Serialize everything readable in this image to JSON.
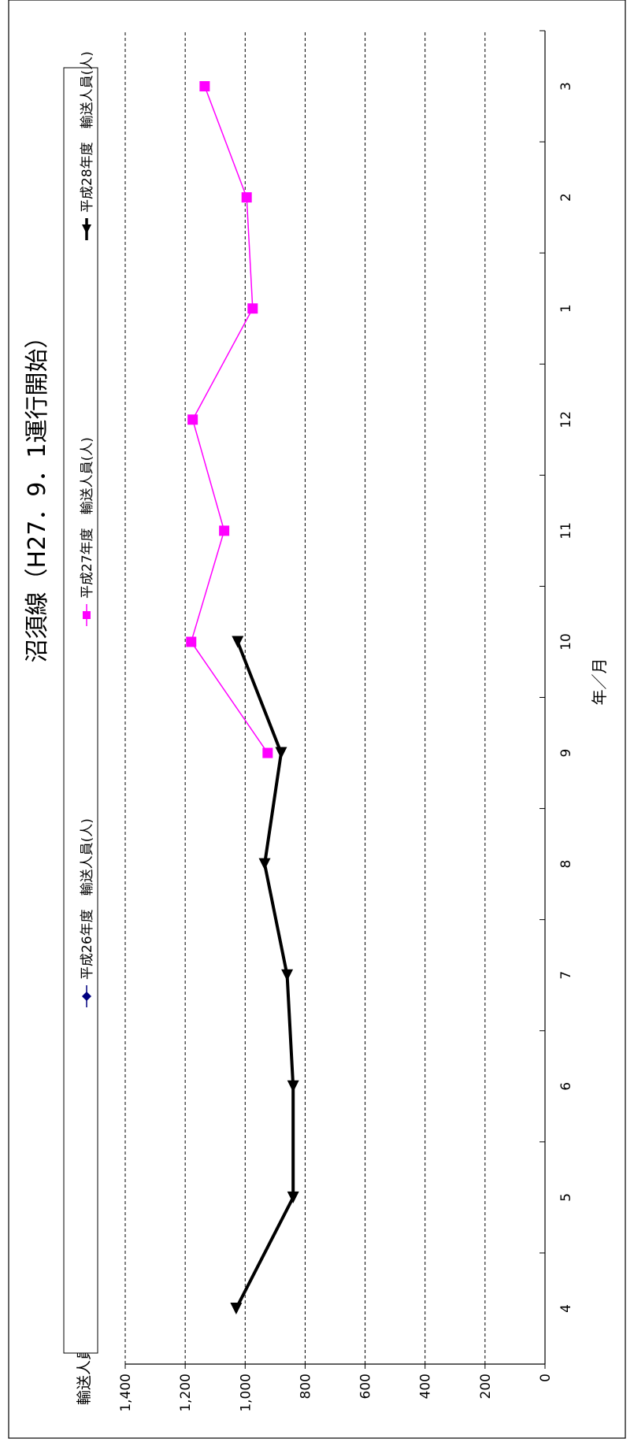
{
  "chart_data": {
    "type": "line",
    "title": "沼須線（H27．9．1運行開始）",
    "xlabel": "年／月",
    "ylabel": "輸送人員",
    "categories": [
      "4",
      "5",
      "6",
      "7",
      "8",
      "9",
      "10",
      "11",
      "12",
      "1",
      "2",
      "3"
    ],
    "ylim": [
      0,
      1400
    ],
    "yticks": [
      "0",
      "200",
      "400",
      "600",
      "800",
      "1,000",
      "1,200",
      "1,400"
    ],
    "grid": true,
    "legend_position": "top",
    "series": [
      {
        "name": "平成26年度　輸送人員(人)",
        "color": "#000080",
        "marker": "diamond",
        "values": [
          null,
          null,
          null,
          null,
          null,
          null,
          null,
          null,
          null,
          null,
          null,
          null
        ]
      },
      {
        "name": "平成27年度　輸送人員(人)",
        "color": "#ff00ff",
        "marker": "square",
        "values": [
          null,
          null,
          null,
          null,
          null,
          925,
          1180,
          1070,
          1175,
          975,
          995,
          1135
        ]
      },
      {
        "name": "平成28年度　輸送人員(人)",
        "color": "#000000",
        "marker": "triangle",
        "values": [
          1030,
          840,
          840,
          860,
          935,
          880,
          1025,
          null,
          null,
          null,
          null,
          null
        ]
      }
    ]
  }
}
